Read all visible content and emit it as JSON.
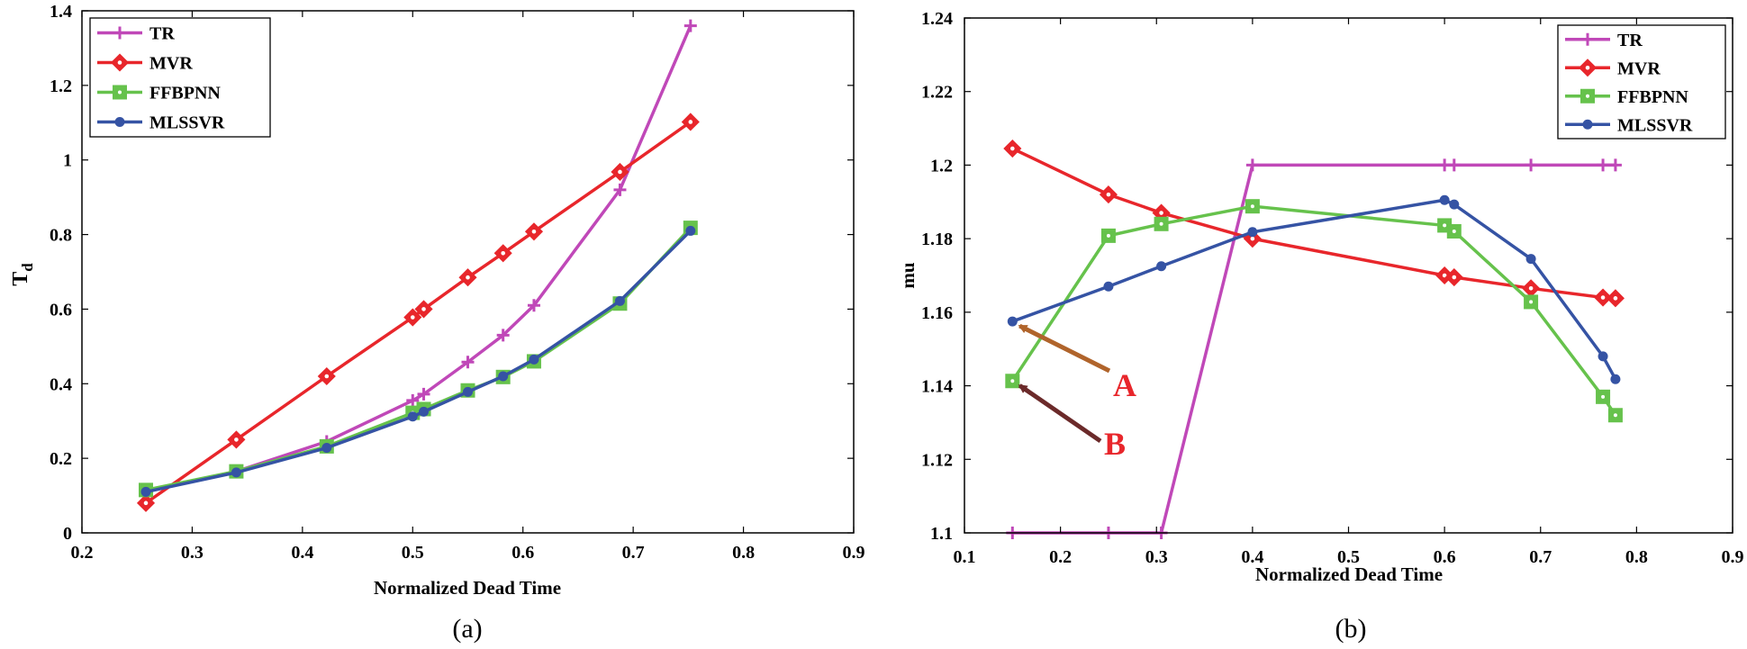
{
  "chart_data": [
    {
      "type": "line",
      "panel": "(a)",
      "xlabel": "Normalized Dead Time",
      "ylabel": "T",
      "ylabel_sub": "d",
      "xlim": [
        0.2,
        0.9
      ],
      "ylim": [
        0,
        1.4
      ],
      "xticks": [
        0.2,
        0.3,
        0.4,
        0.5,
        0.6,
        0.7,
        0.8,
        0.9
      ],
      "xtick_labels": [
        "0.2",
        "0.3",
        "0.4",
        "0.5",
        "0.6",
        "0.7",
        "0.8",
        "0.9"
      ],
      "yticks": [
        0,
        0.2,
        0.4,
        0.6,
        0.8,
        1,
        1.2,
        1.4
      ],
      "ytick_labels": [
        "0",
        "0.2",
        "0.4",
        "0.6",
        "0.8",
        "1",
        "1.2",
        "1.4"
      ],
      "legend_position": "top-left",
      "series": [
        {
          "name": "TR",
          "color": "#c048b8",
          "marker": "plus",
          "x": [
            0.258,
            0.34,
            0.422,
            0.5,
            0.51,
            0.55,
            0.582,
            0.61,
            0.688,
            0.752
          ],
          "y": [
            0.11,
            0.165,
            0.245,
            0.355,
            0.372,
            0.458,
            0.53,
            0.61,
            0.92,
            1.36
          ]
        },
        {
          "name": "MVR",
          "color": "#e8262b",
          "marker": "diamond",
          "x": [
            0.258,
            0.34,
            0.422,
            0.5,
            0.51,
            0.55,
            0.582,
            0.61,
            0.688,
            0.752
          ],
          "y": [
            0.08,
            0.25,
            0.42,
            0.578,
            0.6,
            0.685,
            0.75,
            0.808,
            0.968,
            1.102
          ]
        },
        {
          "name": "FFBPNN",
          "color": "#66c24c",
          "marker": "square",
          "x": [
            0.258,
            0.34,
            0.422,
            0.5,
            0.51,
            0.55,
            0.582,
            0.61,
            0.688,
            0.752
          ],
          "y": [
            0.115,
            0.165,
            0.232,
            0.322,
            0.332,
            0.382,
            0.418,
            0.46,
            0.615,
            0.818
          ]
        },
        {
          "name": "MLSSVR",
          "color": "#3553a4",
          "marker": "dot",
          "x": [
            0.258,
            0.34,
            0.422,
            0.5,
            0.51,
            0.55,
            0.582,
            0.61,
            0.688,
            0.752
          ],
          "y": [
            0.11,
            0.162,
            0.228,
            0.312,
            0.325,
            0.378,
            0.42,
            0.465,
            0.622,
            0.81
          ]
        }
      ]
    },
    {
      "type": "line",
      "panel": "(b)",
      "xlabel": "Normalized Dead Time",
      "ylabel": "mu",
      "xlim": [
        0.1,
        0.9
      ],
      "ylim": [
        1.1,
        1.24
      ],
      "xticks": [
        0.1,
        0.2,
        0.3,
        0.4,
        0.5,
        0.6,
        0.7,
        0.8,
        0.9
      ],
      "xtick_labels": [
        "0.1",
        "0.2",
        "0.3",
        "0.4",
        "0.5",
        "0.6",
        "0.7",
        "0.8",
        "0.9"
      ],
      "yticks": [
        1.1,
        1.12,
        1.14,
        1.16,
        1.18,
        1.2,
        1.22,
        1.24
      ],
      "ytick_labels": [
        "1.1",
        "1.12",
        "1.14",
        "1.16",
        "1.18",
        "1.2",
        "1.22",
        "1.24"
      ],
      "legend_position": "top-right",
      "series": [
        {
          "name": "TR",
          "color": "#c048b8",
          "marker": "plus",
          "x": [
            0.15,
            0.25,
            0.305,
            0.4,
            0.6,
            0.61,
            0.69,
            0.765,
            0.778
          ],
          "y": [
            1.1,
            1.1,
            1.1,
            1.2,
            1.2,
            1.2,
            1.2,
            1.2,
            1.2
          ]
        },
        {
          "name": "MVR",
          "color": "#e8262b",
          "marker": "diamond",
          "x": [
            0.15,
            0.25,
            0.305,
            0.4,
            0.6,
            0.61,
            0.69,
            0.765,
            0.778
          ],
          "y": [
            1.2045,
            1.192,
            1.187,
            1.18,
            1.17,
            1.1695,
            1.1665,
            1.164,
            1.1638
          ]
        },
        {
          "name": "FFBPNN",
          "color": "#66c24c",
          "marker": "square",
          "x": [
            0.15,
            0.25,
            0.305,
            0.4,
            0.6,
            0.61,
            0.69,
            0.765,
            0.778
          ],
          "y": [
            1.1413,
            1.1808,
            1.184,
            1.1888,
            1.1836,
            1.182,
            1.1628,
            1.137,
            1.132
          ]
        },
        {
          "name": "MLSSVR",
          "color": "#3553a4",
          "marker": "dot",
          "x": [
            0.15,
            0.25,
            0.305,
            0.4,
            0.6,
            0.61,
            0.69,
            0.765,
            0.778
          ],
          "y": [
            1.1575,
            1.167,
            1.1725,
            1.1818,
            1.1905,
            1.1893,
            1.1745,
            1.148,
            1.1418
          ]
        }
      ],
      "annotations": [
        {
          "text": "A",
          "color": "#e8262b",
          "arrow_color": "#b0642b",
          "points_to": [
            0.15,
            1.1575
          ]
        },
        {
          "text": "B",
          "color": "#e8262b",
          "arrow_color": "#6b2a2a",
          "points_to": [
            0.15,
            1.1413
          ]
        }
      ]
    }
  ]
}
